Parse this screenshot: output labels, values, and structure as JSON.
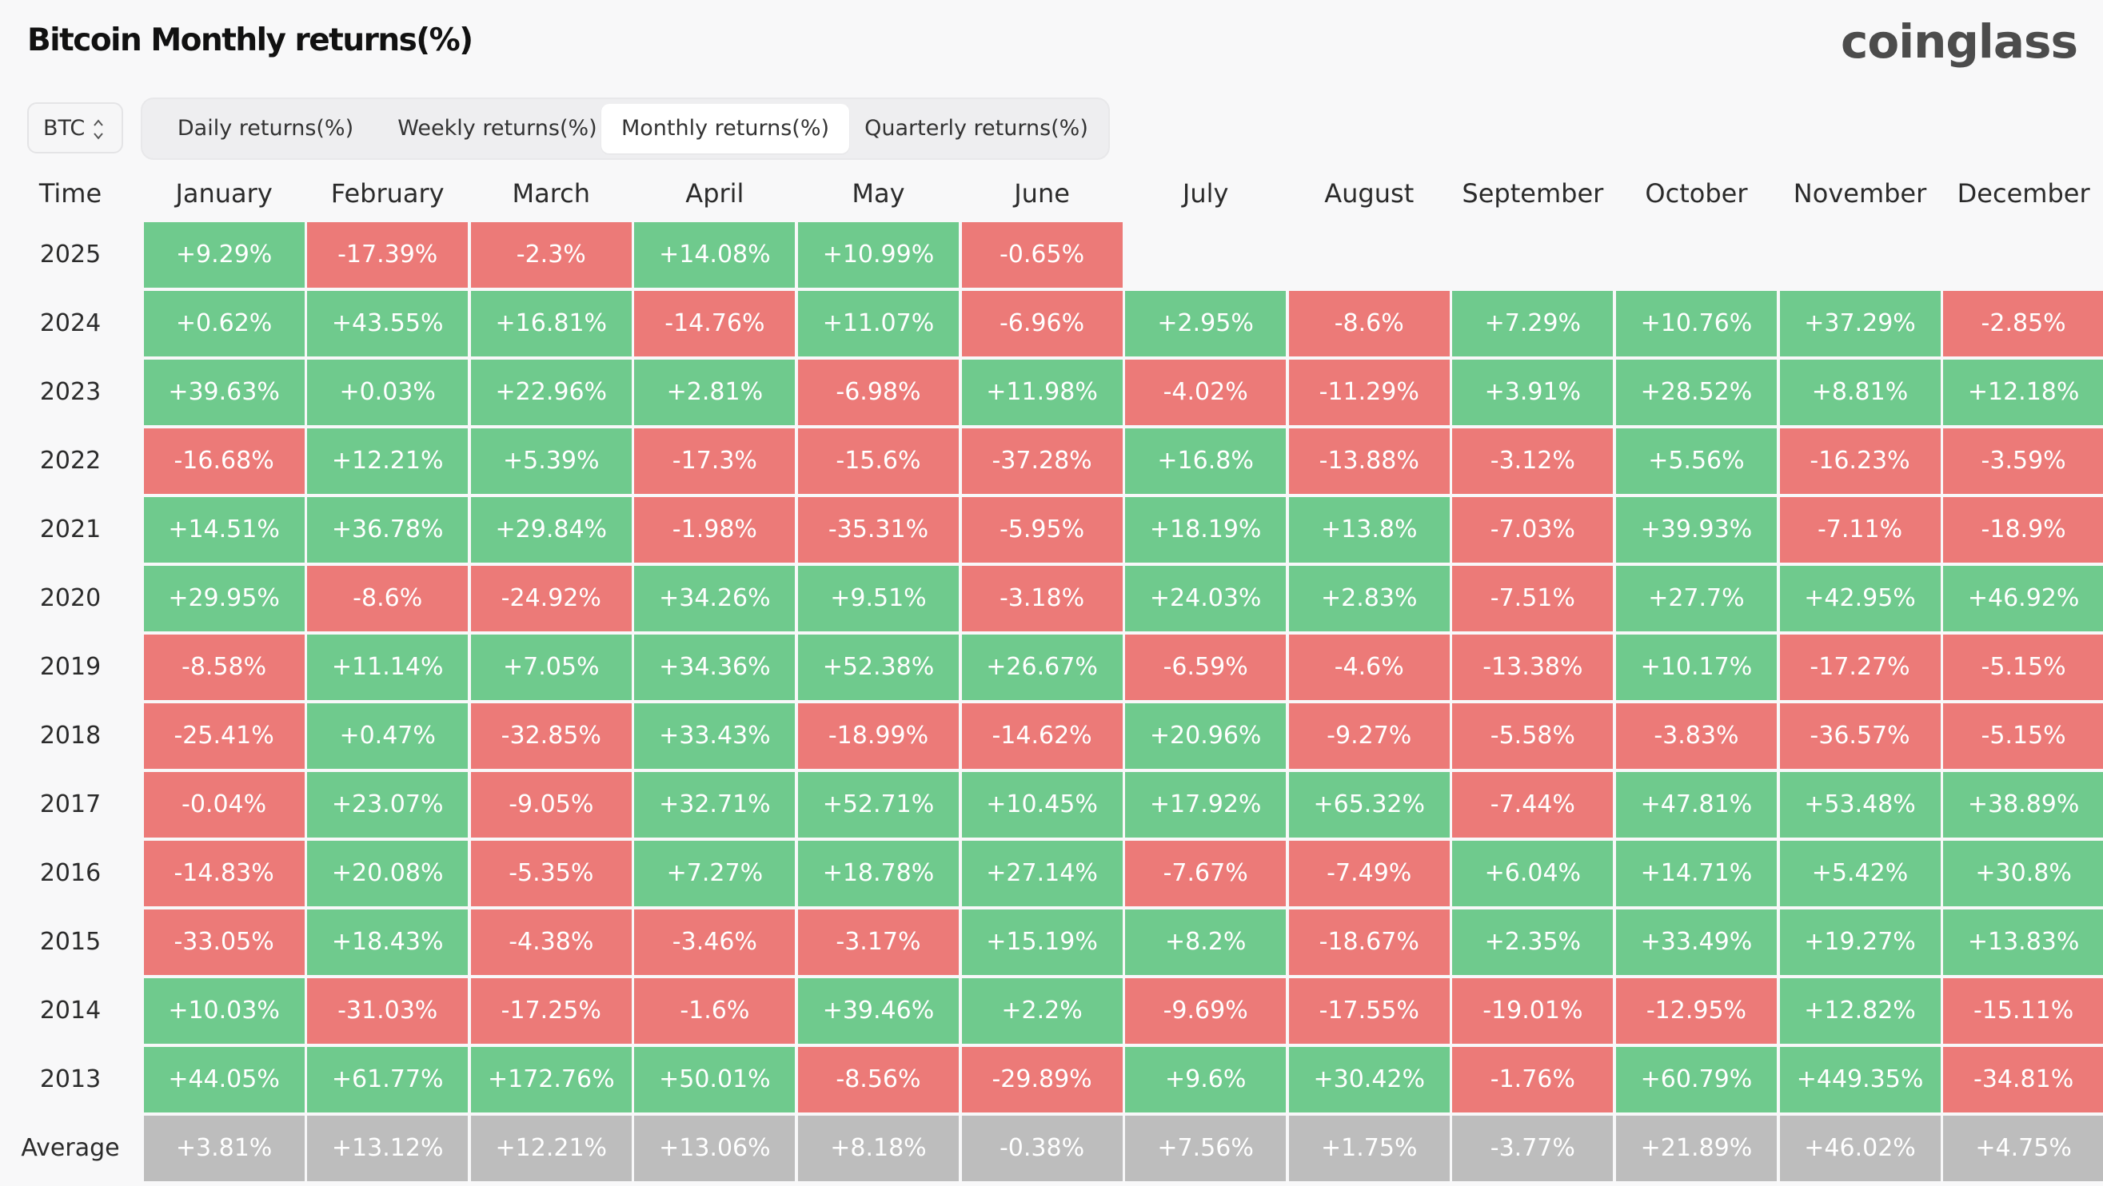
{
  "title": "Bitcoin Monthly returns(%)",
  "brand": "coinglass",
  "asset_selector": {
    "value": "BTC"
  },
  "tabs": [
    {
      "label": "Daily returns(%)"
    },
    {
      "label": "Weekly returns(%)"
    },
    {
      "label": "Monthly returns(%)",
      "active": true
    },
    {
      "label": "Quarterly returns(%)"
    }
  ],
  "colors": {
    "positive": "#6fca8d",
    "negative": "#ec7a78",
    "average": "#bdbdbd"
  },
  "table": {
    "time_header": "Time",
    "months": [
      "January",
      "February",
      "March",
      "April",
      "May",
      "June",
      "July",
      "August",
      "September",
      "October",
      "November",
      "December"
    ],
    "rows": [
      {
        "year": "2025",
        "values": [
          "+9.29%",
          "-17.39%",
          "-2.3%",
          "+14.08%",
          "+10.99%",
          "-0.65%",
          "",
          "",
          "",
          "",
          "",
          ""
        ]
      },
      {
        "year": "2024",
        "values": [
          "+0.62%",
          "+43.55%",
          "+16.81%",
          "-14.76%",
          "+11.07%",
          "-6.96%",
          "+2.95%",
          "-8.6%",
          "+7.29%",
          "+10.76%",
          "+37.29%",
          "-2.85%"
        ]
      },
      {
        "year": "2023",
        "values": [
          "+39.63%",
          "+0.03%",
          "+22.96%",
          "+2.81%",
          "-6.98%",
          "+11.98%",
          "-4.02%",
          "-11.29%",
          "+3.91%",
          "+28.52%",
          "+8.81%",
          "+12.18%"
        ]
      },
      {
        "year": "2022",
        "values": [
          "-16.68%",
          "+12.21%",
          "+5.39%",
          "-17.3%",
          "-15.6%",
          "-37.28%",
          "+16.8%",
          "-13.88%",
          "-3.12%",
          "+5.56%",
          "-16.23%",
          "-3.59%"
        ]
      },
      {
        "year": "2021",
        "values": [
          "+14.51%",
          "+36.78%",
          "+29.84%",
          "-1.98%",
          "-35.31%",
          "-5.95%",
          "+18.19%",
          "+13.8%",
          "-7.03%",
          "+39.93%",
          "-7.11%",
          "-18.9%"
        ]
      },
      {
        "year": "2020",
        "values": [
          "+29.95%",
          "-8.6%",
          "-24.92%",
          "+34.26%",
          "+9.51%",
          "-3.18%",
          "+24.03%",
          "+2.83%",
          "-7.51%",
          "+27.7%",
          "+42.95%",
          "+46.92%"
        ]
      },
      {
        "year": "2019",
        "values": [
          "-8.58%",
          "+11.14%",
          "+7.05%",
          "+34.36%",
          "+52.38%",
          "+26.67%",
          "-6.59%",
          "-4.6%",
          "-13.38%",
          "+10.17%",
          "-17.27%",
          "-5.15%"
        ]
      },
      {
        "year": "2018",
        "values": [
          "-25.41%",
          "+0.47%",
          "-32.85%",
          "+33.43%",
          "-18.99%",
          "-14.62%",
          "+20.96%",
          "-9.27%",
          "-5.58%",
          "-3.83%",
          "-36.57%",
          "-5.15%"
        ]
      },
      {
        "year": "2017",
        "values": [
          "-0.04%",
          "+23.07%",
          "-9.05%",
          "+32.71%",
          "+52.71%",
          "+10.45%",
          "+17.92%",
          "+65.32%",
          "-7.44%",
          "+47.81%",
          "+53.48%",
          "+38.89%"
        ]
      },
      {
        "year": "2016",
        "values": [
          "-14.83%",
          "+20.08%",
          "-5.35%",
          "+7.27%",
          "+18.78%",
          "+27.14%",
          "-7.67%",
          "-7.49%",
          "+6.04%",
          "+14.71%",
          "+5.42%",
          "+30.8%"
        ]
      },
      {
        "year": "2015",
        "values": [
          "-33.05%",
          "+18.43%",
          "-4.38%",
          "-3.46%",
          "-3.17%",
          "+15.19%",
          "+8.2%",
          "-18.67%",
          "+2.35%",
          "+33.49%",
          "+19.27%",
          "+13.83%"
        ]
      },
      {
        "year": "2014",
        "values": [
          "+10.03%",
          "-31.03%",
          "-17.25%",
          "-1.6%",
          "+39.46%",
          "+2.2%",
          "-9.69%",
          "-17.55%",
          "-19.01%",
          "-12.95%",
          "+12.82%",
          "-15.11%"
        ]
      },
      {
        "year": "2013",
        "values": [
          "+44.05%",
          "+61.77%",
          "+172.76%",
          "+50.01%",
          "-8.56%",
          "-29.89%",
          "+9.6%",
          "+30.42%",
          "-1.76%",
          "+60.79%",
          "+449.35%",
          "-34.81%"
        ]
      }
    ],
    "average": {
      "label": "Average",
      "values": [
        "+3.81%",
        "+13.12%",
        "+12.21%",
        "+13.06%",
        "+8.18%",
        "-0.38%",
        "+7.56%",
        "+1.75%",
        "-3.77%",
        "+21.89%",
        "+46.02%",
        "+4.75%"
      ]
    }
  }
}
